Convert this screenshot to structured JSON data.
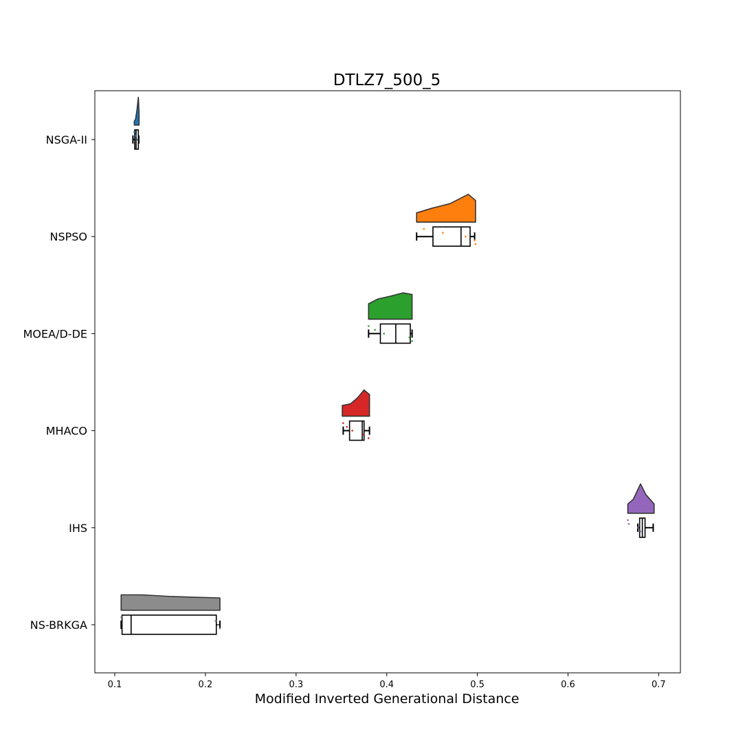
{
  "chart_data": {
    "type": "raincloud",
    "title": "DTLZ7_500_5",
    "xlabel": "Modified Inverted Generational Distance",
    "ylabel": "",
    "xlim": [
      0.078,
      0.724
    ],
    "xticks": [
      "0.1",
      "0.2",
      "0.3",
      "0.4",
      "0.5",
      "0.6",
      "0.7"
    ],
    "xtick_values": [
      0.1,
      0.2,
      0.3,
      0.4,
      0.5,
      0.6,
      0.7
    ],
    "grid": false,
    "categories": [
      "NSGA-II",
      "NSPSO",
      "MOEA/D-DE",
      "MHACO",
      "IHS",
      "NS-BRKGA"
    ],
    "series": [
      {
        "color": "#1f77b4",
        "box": {
          "whisker_low": 0.12,
          "q1": 0.122,
          "median": 0.1235,
          "q3": 0.126,
          "whisker_high": 0.1265
        },
        "points": [
          0.1215,
          0.123,
          0.125
        ],
        "density": {
          "x": [
            0.1215,
            0.123,
            0.1245,
            0.126,
            0.1268
          ],
          "d": [
            0.12,
            0.2,
            0.5,
            0.9,
            0.4
          ]
        }
      },
      {
        "color": "#ff7f0e",
        "box": {
          "whisker_low": 0.433,
          "q1": 0.451,
          "median": 0.482,
          "q3": 0.492,
          "whisker_high": 0.497
        },
        "points": [
          0.441,
          0.462,
          0.487,
          0.497,
          0.498
        ],
        "density": {
          "x": [
            0.433,
            0.45,
            0.47,
            0.49,
            0.498
          ],
          "d": [
            0.3,
            0.45,
            0.6,
            0.9,
            0.7
          ]
        }
      },
      {
        "color": "#2ca02c",
        "box": {
          "whisker_low": 0.38,
          "q1": 0.393,
          "median": 0.41,
          "q3": 0.426,
          "whisker_high": 0.428
        },
        "points": [
          0.38,
          0.387,
          0.397,
          0.425,
          0.428
        ],
        "density": {
          "x": [
            0.38,
            0.39,
            0.405,
            0.418,
            0.428
          ],
          "d": [
            0.5,
            0.65,
            0.75,
            0.85,
            0.8
          ]
        }
      },
      {
        "color": "#d62728",
        "box": {
          "whisker_low": 0.352,
          "q1": 0.359,
          "median": 0.373,
          "q3": 0.375,
          "whisker_high": 0.381
        },
        "points": [
          0.352,
          0.356,
          0.362,
          0.374,
          0.38
        ],
        "density": {
          "x": [
            0.351,
            0.36,
            0.368,
            0.375,
            0.381
          ],
          "d": [
            0.35,
            0.4,
            0.6,
            0.85,
            0.7
          ]
        }
      },
      {
        "color": "#9467bd",
        "box": {
          "whisker_low": 0.677,
          "q1": 0.679,
          "median": 0.682,
          "q3": 0.685,
          "whisker_high": 0.694
        },
        "points": [
          0.666,
          0.667,
          0.677,
          0.68
        ],
        "density": {
          "x": [
            0.666,
            0.672,
            0.68,
            0.686,
            0.695
          ],
          "d": [
            0.3,
            0.45,
            0.95,
            0.6,
            0.3
          ]
        }
      },
      {
        "color": "#8c8c8c",
        "box": {
          "whisker_low": 0.107,
          "q1": 0.108,
          "median": 0.118,
          "q3": 0.212,
          "whisker_high": 0.216
        },
        "points": [
          0.107,
          0.211,
          0.214,
          0.216
        ],
        "density": {
          "x": [
            0.107,
            0.13,
            0.16,
            0.19,
            0.216
          ],
          "d": [
            0.5,
            0.5,
            0.45,
            0.42,
            0.4
          ]
        }
      }
    ]
  }
}
